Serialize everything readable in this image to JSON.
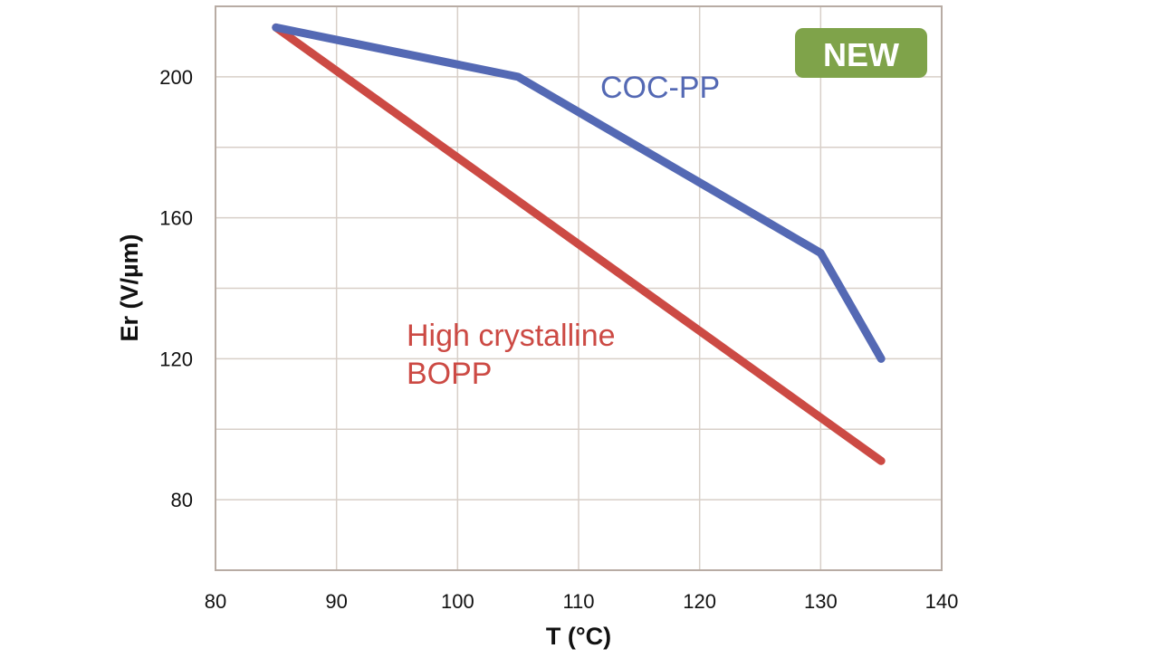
{
  "chart_data": {
    "type": "line",
    "title": "",
    "xlabel": "T (°C)",
    "ylabel": "Er (V/µm)",
    "xlim": [
      80,
      140
    ],
    "ylim": [
      60,
      220
    ],
    "xticks": [
      80,
      90,
      100,
      110,
      120,
      130,
      140
    ],
    "yticks": [
      80,
      120,
      160,
      200
    ],
    "ygrid": [
      60,
      80,
      100,
      120,
      140,
      160,
      180,
      200,
      220
    ],
    "grid": true,
    "series": [
      {
        "name": "COC-PP",
        "color": "#5469b4",
        "x": [
          85,
          105,
          120,
          130,
          135
        ],
        "y": [
          214,
          200,
          170,
          150,
          120
        ]
      },
      {
        "name": "High crystalline BOPP",
        "label_lines": [
          "High crystalline",
          "BOPP"
        ],
        "color": "#cc4a44",
        "x": [
          85,
          135
        ],
        "y": [
          214,
          91
        ]
      }
    ],
    "badge": {
      "text": "NEW",
      "color": "#7fa34a"
    }
  }
}
